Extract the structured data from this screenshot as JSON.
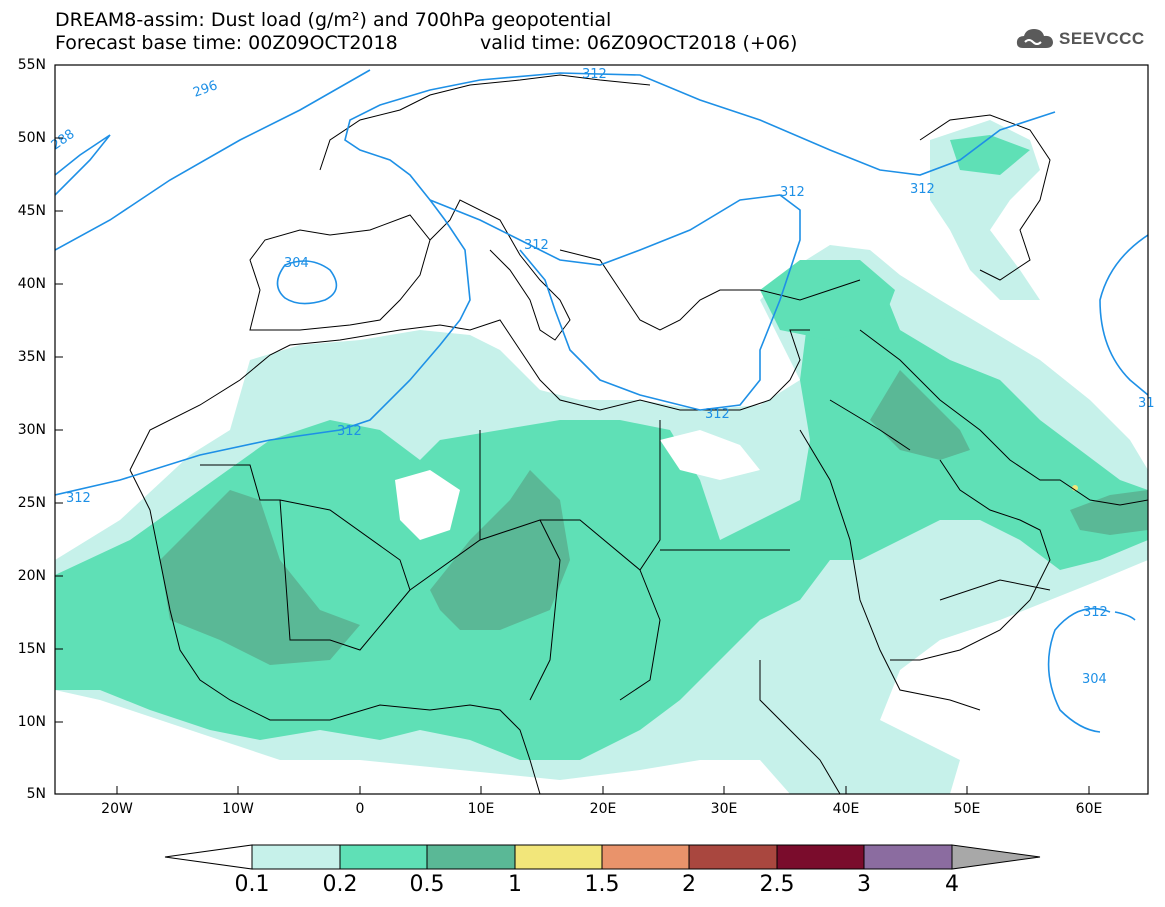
{
  "header": {
    "title_line1": "DREAM8-assim: Dust load (g/m²) and 700hPa geopotential",
    "title_line2": "Forecast base time: 00Z09OCT2018",
    "valid_time": "valid time: 06Z09OCT2018 (+06)",
    "logo_text": "SEEVCCC"
  },
  "axes": {
    "lat_labels": [
      "55N",
      "50N",
      "45N",
      "40N",
      "35N",
      "30N",
      "25N",
      "20N",
      "15N",
      "10N",
      "5N"
    ],
    "lon_labels": [
      "20W",
      "10W",
      "0",
      "10E",
      "20E",
      "30E",
      "40E",
      "50E",
      "60E"
    ]
  },
  "contour_labels": [
    "296",
    "288",
    "312",
    "312",
    "312",
    "304",
    "312",
    "312",
    "312",
    "312",
    "312",
    "304",
    "31"
  ],
  "colorbar": {
    "labels": [
      "0.1",
      "0.2",
      "0.5",
      "1",
      "1.5",
      "2",
      "2.5",
      "3",
      "4"
    ],
    "colors": [
      "#ffffff",
      "#c6f1ea",
      "#5fe0b6",
      "#5ab896",
      "#f2e67a",
      "#e9936b",
      "#a9473f",
      "#7a0c2c",
      "#8b6ca0",
      "#a8a8a8"
    ]
  },
  "dust_colors": {
    "level_0_1": "#c6f1ea",
    "level_0_2": "#5fe0b6",
    "level_0_5": "#5ab896",
    "level_1": "#f2e67a",
    "level_1_5": "#e9936b"
  },
  "geopotential_color": "#1e90e6"
}
